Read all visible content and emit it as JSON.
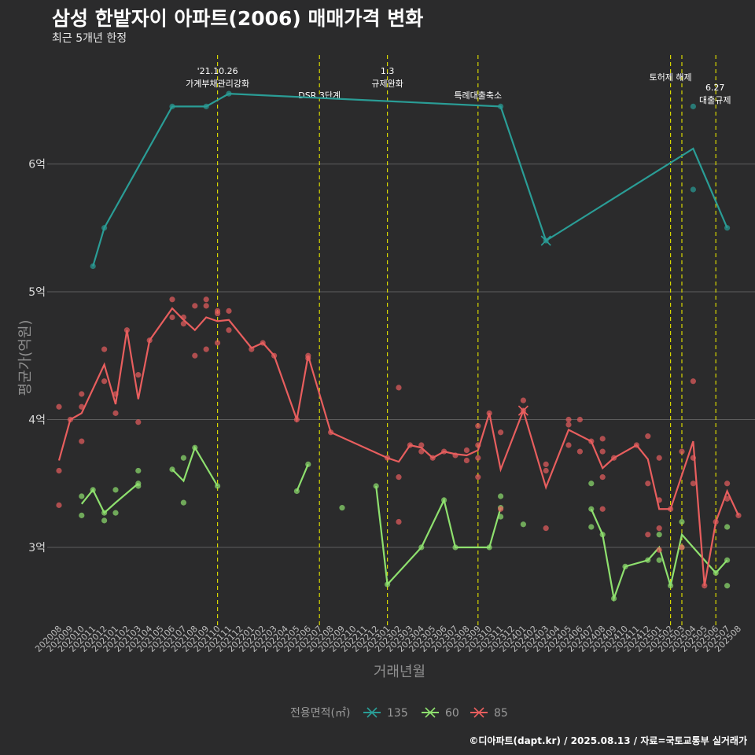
{
  "title": "삼성 한밭자이 아파트(2006) 매매가격 변화",
  "subtitle": "최근 5개년 한정",
  "source": "©디아파트(dapt.kr) / 2025.08.13 / 자료=국토교통부 실거래가",
  "chart_data": {
    "type": "line",
    "xlabel": "거래년월",
    "ylabel": "평균가(억원)",
    "ylim": [
      2.4,
      7.0
    ],
    "y_ticks": [
      3,
      4,
      5,
      6
    ],
    "y_tick_labels": [
      "3억",
      "4억",
      "5억",
      "6억"
    ],
    "grid": "horizontal",
    "legend_title": "전용면적(㎡)",
    "legend_position": "bottom",
    "categories": [
      "202008",
      "202009",
      "202010",
      "202011",
      "202012",
      "202101",
      "202102",
      "202103",
      "202104",
      "202105",
      "202106",
      "202107",
      "202108",
      "202109",
      "202110",
      "202111",
      "202112",
      "202201",
      "202202",
      "202203",
      "202204",
      "202205",
      "202206",
      "202207",
      "202208",
      "202209",
      "202210",
      "202211",
      "202212",
      "202301",
      "202302",
      "202303",
      "202304",
      "202305",
      "202306",
      "202307",
      "202308",
      "202309",
      "202310",
      "202311",
      "202312",
      "202401",
      "202402",
      "202403",
      "202404",
      "202405",
      "202406",
      "202407",
      "202408",
      "202409",
      "202410",
      "202411",
      "202412",
      "202501",
      "202502",
      "202503",
      "202504",
      "202505",
      "202506",
      "202507",
      "202508"
    ],
    "series": [
      {
        "name": "135",
        "color": "#2a9d96",
        "line": [
          [
            "202011",
            5.2
          ],
          [
            "202012",
            5.5
          ],
          [
            "202106",
            6.45
          ],
          [
            "202109",
            6.45
          ],
          [
            "202111",
            6.55
          ],
          [
            "202311",
            6.45
          ],
          [
            "202403",
            5.4
          ],
          [
            "202504",
            6.12
          ],
          [
            "202507",
            5.5
          ]
        ],
        "points": [
          [
            "202011",
            5.2
          ],
          [
            "202012",
            5.5
          ],
          [
            "202106",
            6.45
          ],
          [
            "202109",
            6.45
          ],
          [
            "202111",
            6.55
          ],
          [
            "202311",
            6.45
          ],
          [
            "202403",
            5.4
          ],
          [
            "202504",
            6.45
          ],
          [
            "202504",
            5.8
          ],
          [
            "202507",
            5.5
          ]
        ]
      },
      {
        "name": "60",
        "color": "#8ee06e",
        "line": [
          [
            "202010",
            3.34
          ],
          [
            "202011",
            3.45
          ],
          [
            "202012",
            3.27
          ],
          [
            "202101",
            3.35
          ],
          [
            "202103",
            3.5
          ]
        ],
        "line2": [
          [
            "202106",
            3.61
          ],
          [
            "202107",
            3.52
          ],
          [
            "202108",
            3.78
          ],
          [
            "202110",
            3.48
          ]
        ],
        "line3": [
          [
            "202205",
            3.44
          ],
          [
            "202206",
            3.65
          ]
        ],
        "line4": [
          [
            "202212",
            3.48
          ],
          [
            "202301",
            2.71
          ],
          [
            "202304",
            3.0
          ],
          [
            "202306",
            3.37
          ],
          [
            "202307",
            3.0
          ],
          [
            "202309",
            3.0
          ],
          [
            "202310",
            3.0
          ],
          [
            "202311",
            3.31
          ]
        ],
        "line5": [
          [
            "202407",
            3.3
          ],
          [
            "202408",
            3.1
          ],
          [
            "202409",
            2.6
          ],
          [
            "202410",
            2.85
          ],
          [
            "202412",
            2.9
          ],
          [
            "202501",
            3.0
          ],
          [
            "202502",
            2.7
          ],
          [
            "202503",
            3.1
          ],
          [
            "202506",
            2.8
          ],
          [
            "202507",
            2.9
          ]
        ],
        "points": [
          [
            "202010",
            3.4
          ],
          [
            "202010",
            3.25
          ],
          [
            "202011",
            3.45
          ],
          [
            "202012",
            3.27
          ],
          [
            "202012",
            3.21
          ],
          [
            "202101",
            3.45
          ],
          [
            "202101",
            3.27
          ],
          [
            "202103",
            3.6
          ],
          [
            "202103",
            3.48
          ],
          [
            "202103",
            3.5
          ],
          [
            "202106",
            3.61
          ],
          [
            "202107",
            3.7
          ],
          [
            "202107",
            3.35
          ],
          [
            "202108",
            3.78
          ],
          [
            "202110",
            3.48
          ],
          [
            "202205",
            3.44
          ],
          [
            "202206",
            3.65
          ],
          [
            "202209",
            3.31
          ],
          [
            "202212",
            3.48
          ],
          [
            "202301",
            2.71
          ],
          [
            "202304",
            3.0
          ],
          [
            "202306",
            3.37
          ],
          [
            "202307",
            3.0
          ],
          [
            "202310",
            3.0
          ],
          [
            "202311",
            3.4
          ],
          [
            "202311",
            3.24
          ],
          [
            "202311",
            3.31
          ],
          [
            "202401",
            3.18
          ],
          [
            "202407",
            3.5
          ],
          [
            "202407",
            3.3
          ],
          [
            "202407",
            3.16
          ],
          [
            "202408",
            3.1
          ],
          [
            "202409",
            2.6
          ],
          [
            "202410",
            2.85
          ],
          [
            "202412",
            2.9
          ],
          [
            "202501",
            3.1
          ],
          [
            "202501",
            2.9
          ],
          [
            "202502",
            2.7
          ],
          [
            "202503",
            3.2
          ],
          [
            "202503",
            3.0
          ],
          [
            "202506",
            2.8
          ],
          [
            "202507",
            2.9
          ],
          [
            "202507",
            3.16
          ],
          [
            "202507",
            2.7
          ]
        ]
      },
      {
        "name": "85",
        "color": "#e85e5e",
        "line": [
          [
            "202008",
            3.68
          ],
          [
            "202009",
            4.0
          ],
          [
            "202010",
            4.05
          ],
          [
            "202012",
            4.43
          ],
          [
            "202101",
            4.12
          ],
          [
            "202102",
            4.7
          ],
          [
            "202103",
            4.16
          ],
          [
            "202104",
            4.62
          ],
          [
            "202106",
            4.87
          ],
          [
            "202107",
            4.78
          ],
          [
            "202108",
            4.7
          ],
          [
            "202109",
            4.8
          ],
          [
            "202110",
            4.77
          ],
          [
            "202111",
            4.78
          ],
          [
            "202201",
            4.56
          ],
          [
            "202202",
            4.6
          ],
          [
            "202203",
            4.5
          ],
          [
            "202205",
            4.0
          ],
          [
            "202206",
            4.5
          ],
          [
            "202208",
            3.9
          ],
          [
            "202301",
            3.7
          ],
          [
            "202302",
            3.67
          ],
          [
            "202303",
            3.8
          ],
          [
            "202304",
            3.78
          ],
          [
            "202305",
            3.7
          ],
          [
            "202306",
            3.75
          ],
          [
            "202307",
            3.73
          ],
          [
            "202308",
            3.72
          ],
          [
            "202309",
            3.76
          ],
          [
            "202310",
            4.05
          ],
          [
            "202311",
            3.61
          ],
          [
            "202401",
            4.07
          ],
          [
            "202403",
            3.47
          ],
          [
            "202405",
            3.92
          ],
          [
            "202407",
            3.83
          ],
          [
            "202408",
            3.62
          ],
          [
            "202409",
            3.7
          ],
          [
            "202411",
            3.8
          ],
          [
            "202412",
            3.69
          ],
          [
            "202501",
            3.3
          ],
          [
            "202502",
            3.3
          ],
          [
            "202504",
            3.83
          ],
          [
            "202505",
            2.7
          ],
          [
            "202506",
            3.2
          ],
          [
            "202507",
            3.44
          ],
          [
            "202508",
            3.25
          ]
        ],
        "points": [
          [
            "202008",
            4.1
          ],
          [
            "202008",
            3.6
          ],
          [
            "202008",
            3.33
          ],
          [
            "202009",
            4.0
          ],
          [
            "202010",
            4.2
          ],
          [
            "202010",
            4.1
          ],
          [
            "202010",
            3.83
          ],
          [
            "202012",
            4.55
          ],
          [
            "202012",
            4.3
          ],
          [
            "202101",
            4.2
          ],
          [
            "202101",
            4.05
          ],
          [
            "202102",
            4.7
          ],
          [
            "202103",
            4.35
          ],
          [
            "202103",
            3.98
          ],
          [
            "202104",
            4.62
          ],
          [
            "202106",
            4.94
          ],
          [
            "202106",
            4.8
          ],
          [
            "202107",
            4.8
          ],
          [
            "202107",
            4.75
          ],
          [
            "202108",
            4.89
          ],
          [
            "202108",
            4.5
          ],
          [
            "202109",
            4.94
          ],
          [
            "202109",
            4.89
          ],
          [
            "202109",
            4.55
          ],
          [
            "202110",
            4.85
          ],
          [
            "202110",
            4.83
          ],
          [
            "202110",
            4.6
          ],
          [
            "202111",
            4.85
          ],
          [
            "202111",
            4.7
          ],
          [
            "202201",
            4.55
          ],
          [
            "202202",
            4.6
          ],
          [
            "202203",
            4.5
          ],
          [
            "202205",
            4.0
          ],
          [
            "202206",
            4.5
          ],
          [
            "202206",
            4.48
          ],
          [
            "202208",
            3.9
          ],
          [
            "202301",
            3.7
          ],
          [
            "202302",
            4.25
          ],
          [
            "202302",
            3.55
          ],
          [
            "202302",
            3.2
          ],
          [
            "202303",
            3.8
          ],
          [
            "202304",
            3.8
          ],
          [
            "202304",
            3.75
          ],
          [
            "202305",
            3.7
          ],
          [
            "202306",
            3.75
          ],
          [
            "202307",
            3.72
          ],
          [
            "202308",
            3.76
          ],
          [
            "202308",
            3.68
          ],
          [
            "202309",
            3.95
          ],
          [
            "202309",
            3.8
          ],
          [
            "202309",
            3.7
          ],
          [
            "202309",
            3.55
          ],
          [
            "202310",
            4.05
          ],
          [
            "202311",
            3.9
          ],
          [
            "202311",
            3.3
          ],
          [
            "202401",
            4.15
          ],
          [
            "202401",
            4.07
          ],
          [
            "202403",
            3.65
          ],
          [
            "202403",
            3.6
          ],
          [
            "202403",
            3.15
          ],
          [
            "202405",
            4.0
          ],
          [
            "202405",
            3.96
          ],
          [
            "202405",
            3.8
          ],
          [
            "202406",
            4.0
          ],
          [
            "202406",
            3.75
          ],
          [
            "202407",
            3.83
          ],
          [
            "202408",
            3.85
          ],
          [
            "202408",
            3.75
          ],
          [
            "202408",
            3.55
          ],
          [
            "202408",
            3.3
          ],
          [
            "202409",
            3.7
          ],
          [
            "202411",
            3.8
          ],
          [
            "202412",
            3.87
          ],
          [
            "202412",
            3.5
          ],
          [
            "202412",
            3.1
          ],
          [
            "202501",
            3.7
          ],
          [
            "202501",
            3.37
          ],
          [
            "202501",
            3.15
          ],
          [
            "202501",
            2.98
          ],
          [
            "202502",
            3.3
          ],
          [
            "202503",
            3.75
          ],
          [
            "202503",
            3.0
          ],
          [
            "202504",
            4.3
          ],
          [
            "202504",
            3.7
          ],
          [
            "202504",
            3.5
          ],
          [
            "202505",
            2.7
          ],
          [
            "202506",
            3.2
          ],
          [
            "202507",
            3.5
          ],
          [
            "202507",
            3.38
          ],
          [
            "202508",
            3.25
          ]
        ]
      }
    ],
    "annotations": [
      {
        "x": "202110",
        "lines": [
          "'21.10.26",
          "가계부채관리강화"
        ],
        "level": "top"
      },
      {
        "x": "202207",
        "lines": [
          "DSR 3단계"
        ],
        "level": "mid"
      },
      {
        "x": "202301",
        "lines": [
          "1.3",
          "규제완화"
        ],
        "level": "top"
      },
      {
        "x": "202309",
        "lines": [
          "특례대출축소"
        ],
        "level": "mid"
      },
      {
        "x": "202502",
        "lines": [
          "토허제 해제"
        ],
        "level": "top"
      },
      {
        "x": "202503",
        "lines": [],
        "level": "none"
      },
      {
        "x": "202506",
        "lines": [
          "6.27",
          "대출규제"
        ],
        "level": "lower"
      }
    ]
  }
}
